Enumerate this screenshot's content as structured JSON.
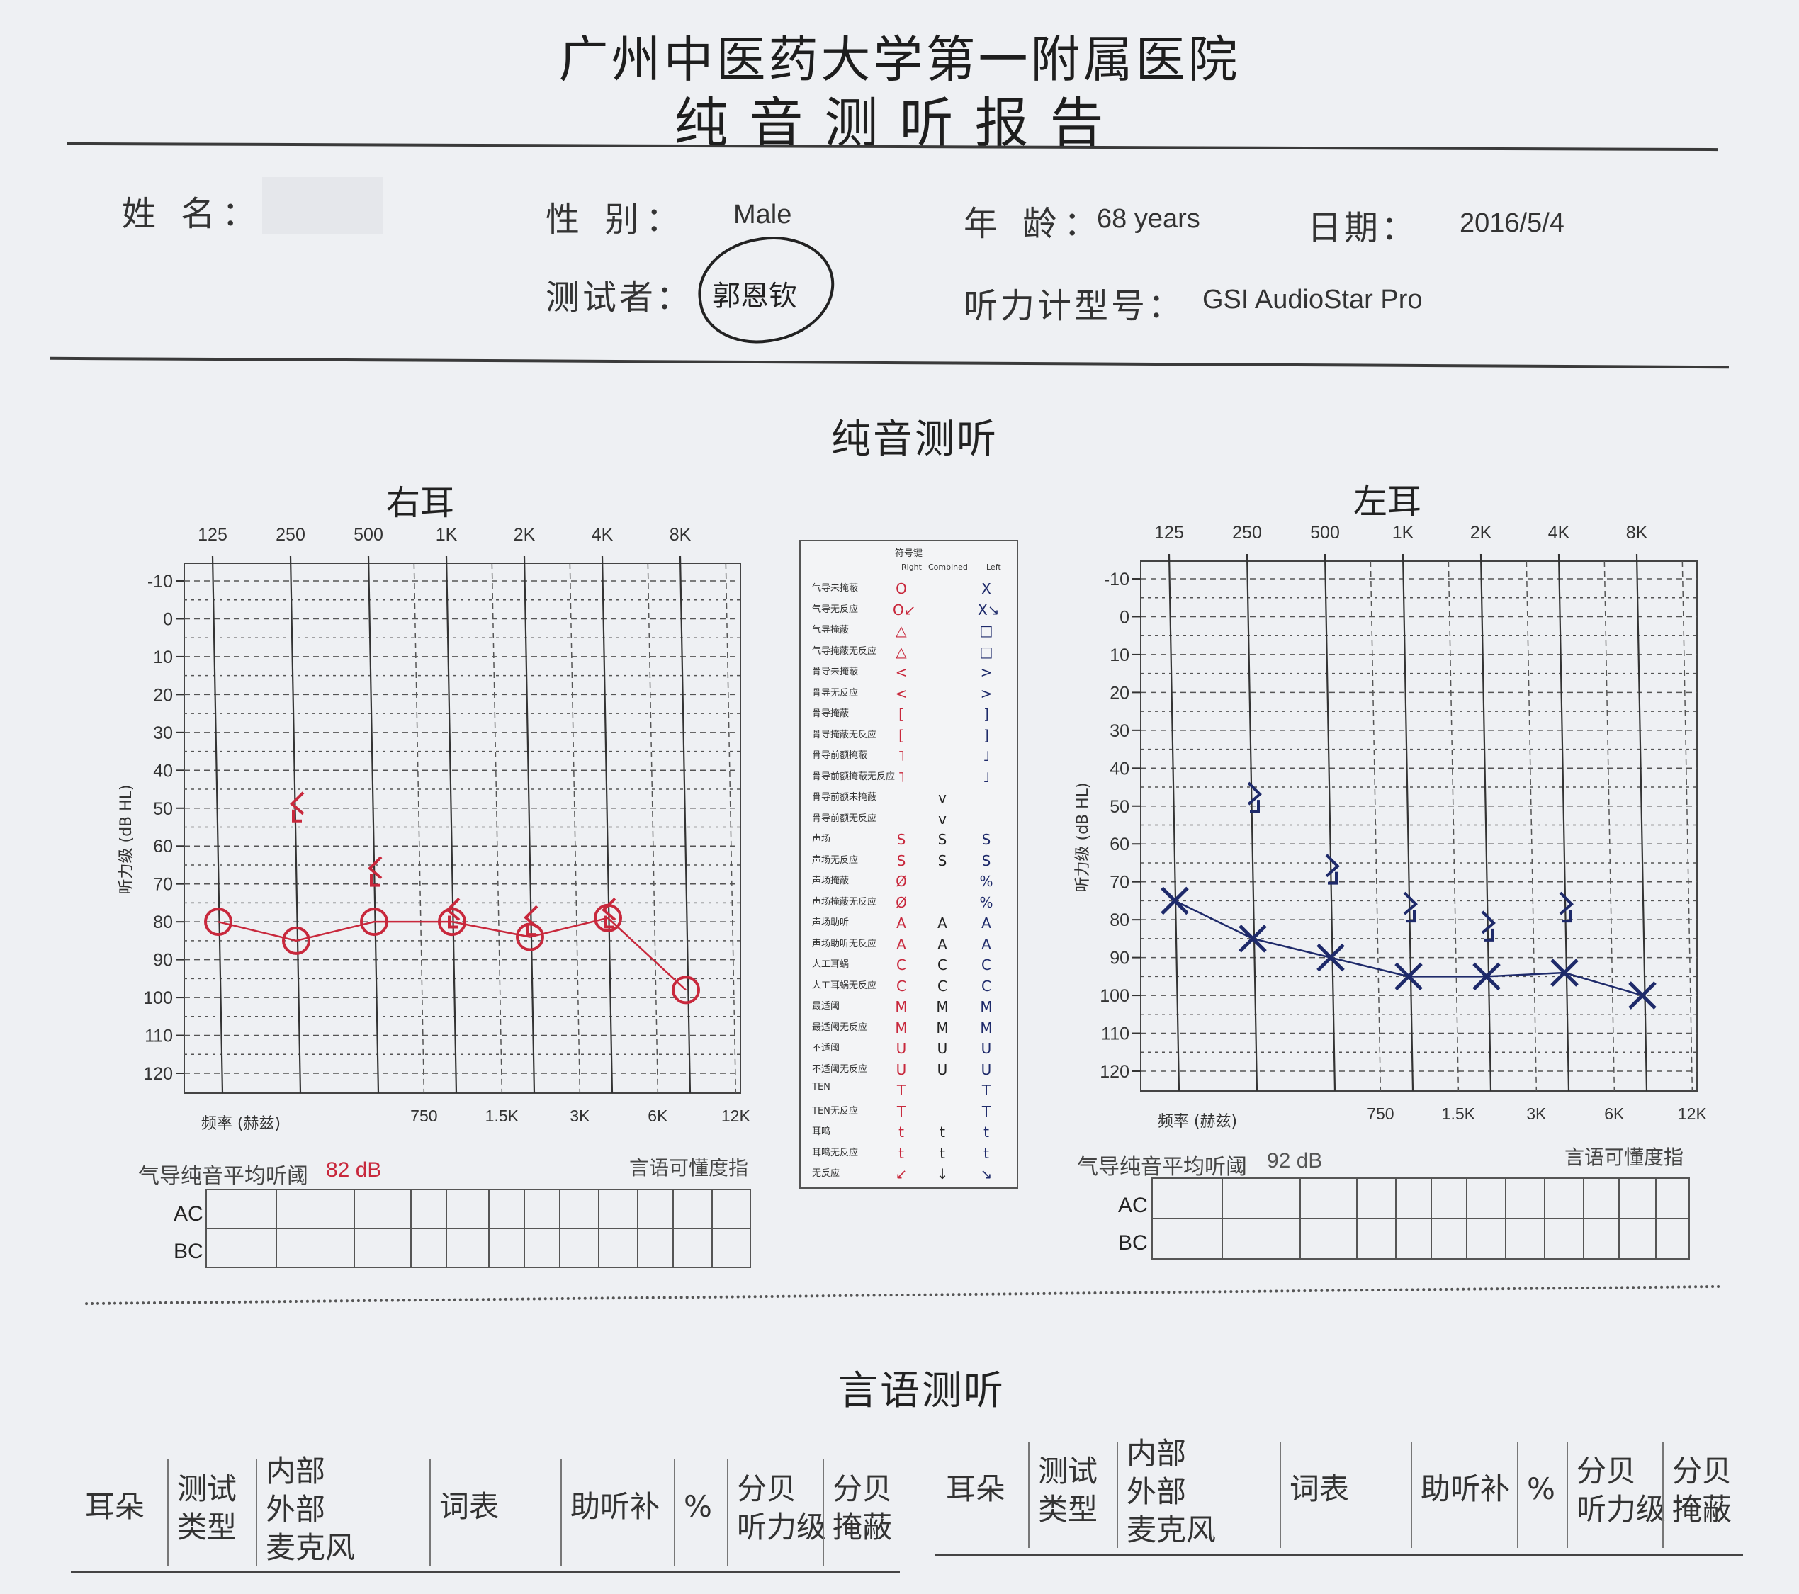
{
  "header": {
    "hospital": "广州中医药大学第一附属医院",
    "report_title": "纯音测听报告"
  },
  "patient": {
    "name_label": "姓 名：",
    "gender_label": "性 别：",
    "gender_value": "Male",
    "age_label": "年 龄：",
    "age_value": "68 years",
    "date_label": "日期：",
    "date_value": "2016/5/4",
    "tester_label": "测试者：",
    "tester_value": "郭恩钦",
    "audiometer_label": "听力计型号：",
    "audiometer_value": "GSI AudioStar Pro"
  },
  "pure_tone": {
    "section_title": "纯音测听",
    "freq_top": [
      "125",
      "250",
      "500",
      "1K",
      "2K",
      "4K",
      "8K"
    ],
    "freq_bottom": [
      "750",
      "1.5K",
      "3K",
      "6K",
      "12K"
    ],
    "freq_axis_label": "频率 (赫兹)",
    "y_label": "听力级 (dB HL)",
    "y_ticks": [
      "-10",
      "0",
      "10",
      "20",
      "30",
      "40",
      "50",
      "60",
      "70",
      "80",
      "90",
      "100",
      "110",
      "120"
    ],
    "pta_label": "气导纯音平均听阈",
    "speech_label": "言语可懂度指",
    "ac_label": "AC",
    "bc_label": "BC",
    "right": {
      "title": "右耳",
      "pta_value": "82 dB",
      "color": "#c8283c"
    },
    "left": {
      "title": "左耳",
      "pta_value": "92 dB",
      "color": "#1e2a6a"
    }
  },
  "chart_data": [
    {
      "type": "line",
      "title": "右耳",
      "xlabel": "频率 (赫兹)",
      "ylabel": "听力级 (dB HL)",
      "x": [
        125,
        250,
        500,
        1000,
        2000,
        4000,
        8000
      ],
      "ylim": [
        -10,
        120
      ],
      "y_inverted": true,
      "x_scale": "log",
      "series": [
        {
          "values": [
            80,
            85,
            80,
            80,
            84,
            79,
            98
          ],
          "symbol": "circle",
          "color": "#c8283c"
        },
        {
          "x": [
            250,
            500,
            1000,
            2000,
            4000
          ],
          "values": [
            50,
            67,
            78,
            80,
            78
          ],
          "symbol": "bone-right-no-response",
          "color": "#c8283c"
        }
      ]
    },
    {
      "type": "line",
      "title": "左耳",
      "xlabel": "频率 (赫兹)",
      "ylabel": "听力级 (dB HL)",
      "x": [
        125,
        250,
        500,
        1000,
        2000,
        4000,
        8000
      ],
      "ylim": [
        -10,
        120
      ],
      "y_inverted": true,
      "x_scale": "log",
      "series": [
        {
          "values": [
            75,
            85,
            90,
            95,
            95,
            94,
            100
          ],
          "symbol": "cross",
          "color": "#1e2a6a"
        },
        {
          "x": [
            250,
            500,
            1000,
            2000,
            4000
          ],
          "values": [
            48,
            67,
            77,
            82,
            77
          ],
          "symbol": "bone-left-no-response",
          "color": "#1e2a6a"
        }
      ]
    }
  ],
  "legend": {
    "title": "符号键",
    "col_right": "Right",
    "col_combined": "Combined",
    "col_left": "Left",
    "rows": [
      {
        "name": "气导未掩蔽",
        "r": "O",
        "c": "",
        "l": "X"
      },
      {
        "name": "气导无反应",
        "r": "O↙",
        "c": "",
        "l": "X↘"
      },
      {
        "name": "气导掩蔽",
        "r": "△",
        "c": "",
        "l": "□"
      },
      {
        "name": "气导掩蔽无反应",
        "r": "△",
        "c": "",
        "l": "□"
      },
      {
        "name": "骨导未掩蔽",
        "r": "<",
        "c": "",
        "l": ">"
      },
      {
        "name": "骨导无反应",
        "r": "<",
        "c": "",
        "l": ">"
      },
      {
        "name": "骨导掩蔽",
        "r": "[",
        "c": "",
        "l": "]"
      },
      {
        "name": "骨导掩蔽无反应",
        "r": "[",
        "c": "",
        "l": "]"
      },
      {
        "name": "骨导前额掩蔽",
        "r": "˥",
        "c": "",
        "l": "˩"
      },
      {
        "name": "骨导前额掩蔽无反应",
        "r": "˥",
        "c": "",
        "l": "˩"
      },
      {
        "name": "骨导前额未掩蔽",
        "r": "",
        "c": "v",
        "l": ""
      },
      {
        "name": "骨导前额无反应",
        "r": "",
        "c": "v",
        "l": ""
      },
      {
        "name": "声场",
        "r": "S",
        "c": "S",
        "l": "S"
      },
      {
        "name": "声场无反应",
        "r": "S",
        "c": "S",
        "l": "S"
      },
      {
        "name": "声场掩蔽",
        "r": "Ø",
        "c": "",
        "l": "%"
      },
      {
        "name": "声场掩蔽无反应",
        "r": "Ø",
        "c": "",
        "l": "%"
      },
      {
        "name": "声场助听",
        "r": "A",
        "c": "A",
        "l": "A"
      },
      {
        "name": "声场助听无反应",
        "r": "A",
        "c": "A",
        "l": "A"
      },
      {
        "name": "人工耳蜗",
        "r": "C",
        "c": "C",
        "l": "C"
      },
      {
        "name": "人工耳蜗无反应",
        "r": "C",
        "c": "C",
        "l": "C"
      },
      {
        "name": "最适阈",
        "r": "M",
        "c": "M",
        "l": "M"
      },
      {
        "name": "最适阈无反应",
        "r": "M",
        "c": "M",
        "l": "M"
      },
      {
        "name": "不适阈",
        "r": "U",
        "c": "U",
        "l": "U"
      },
      {
        "name": "不适阈无反应",
        "r": "U",
        "c": "U",
        "l": "U"
      },
      {
        "name": "TEN",
        "r": "T",
        "c": "",
        "l": "T"
      },
      {
        "name": "TEN无反应",
        "r": "T",
        "c": "",
        "l": "T"
      },
      {
        "name": "耳鸣",
        "r": "t",
        "c": "t",
        "l": "t"
      },
      {
        "name": "耳鸣无反应",
        "r": "t",
        "c": "t",
        "l": "t"
      },
      {
        "name": "无反应",
        "r": "↙",
        "c": "↓",
        "l": "↘"
      }
    ]
  },
  "speech": {
    "section_title": "言语测听",
    "headers": [
      "耳朵",
      "测试\n类型",
      "内部\n外部\n麦克风",
      "词表",
      "助听补",
      "%",
      "分贝\n听力级",
      "分贝\n掩蔽"
    ]
  }
}
